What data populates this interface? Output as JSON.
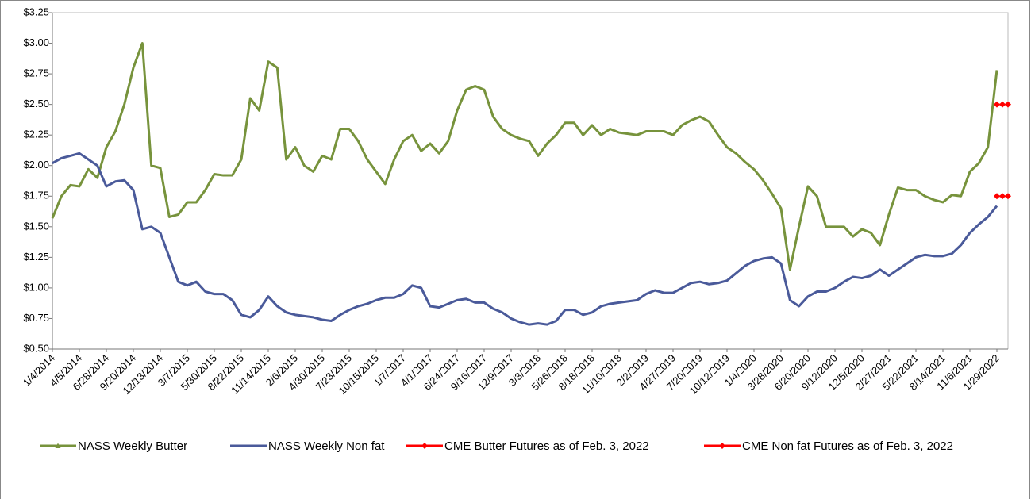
{
  "chart_data": {
    "type": "line",
    "categories": [
      "1/4/2014",
      null,
      null,
      "4/5/2014",
      null,
      null,
      "6/28/2014",
      null,
      null,
      "9/20/2014",
      null,
      null,
      "12/13/2014",
      null,
      null,
      "3/7/2015",
      null,
      null,
      "5/30/2015",
      null,
      null,
      "8/22/2015",
      null,
      null,
      "11/14/2015",
      null,
      null,
      "2/6/2015",
      null,
      null,
      "4/30/2015",
      null,
      null,
      "7/23/2015",
      null,
      null,
      "10/15/2015",
      null,
      null,
      "1/7/2017",
      null,
      null,
      "4/1/2017",
      null,
      null,
      "6/24/2017",
      null,
      null,
      "9/16/2017",
      null,
      null,
      "12/9/2017",
      null,
      null,
      "3/3/2018",
      null,
      null,
      "5/26/2018",
      null,
      null,
      "8/18/2018",
      null,
      null,
      "11/10/2018",
      null,
      null,
      "2/2/2019",
      null,
      null,
      "4/27/2019",
      null,
      null,
      "7/20/2019",
      null,
      null,
      "10/12/2019",
      null,
      null,
      "1/4/2020",
      null,
      null,
      "3/28/2020",
      null,
      null,
      "6/20/2020",
      null,
      null,
      "9/12/2020",
      null,
      null,
      "12/5/2020",
      null,
      null,
      "2/27/2021",
      null,
      null,
      "5/22/2021",
      null,
      null,
      "8/14/2021",
      null,
      null,
      "11/6/2021",
      null,
      null,
      "1/29/2022"
    ],
    "series": [
      {
        "name": "NASS Weekly Butter",
        "color": "#77933c",
        "marker": "triangle",
        "values": [
          1.57,
          1.75,
          1.84,
          1.83,
          1.97,
          1.9,
          2.15,
          2.28,
          2.5,
          2.8,
          3.0,
          2.0,
          1.98,
          1.58,
          1.6,
          1.7,
          1.7,
          1.8,
          1.93,
          1.92,
          1.92,
          2.05,
          2.55,
          2.45,
          2.85,
          2.8,
          2.05,
          2.15,
          2.0,
          1.95,
          2.08,
          2.05,
          2.3,
          2.3,
          2.2,
          2.05,
          1.95,
          1.85,
          2.05,
          2.2,
          2.25,
          2.12,
          2.18,
          2.1,
          2.2,
          2.45,
          2.62,
          2.65,
          2.62,
          2.4,
          2.3,
          2.25,
          2.22,
          2.2,
          2.08,
          2.18,
          2.25,
          2.35,
          2.35,
          2.25,
          2.33,
          2.25,
          2.3,
          2.27,
          2.26,
          2.25,
          2.28,
          2.28,
          2.28,
          2.25,
          2.33,
          2.37,
          2.4,
          2.36,
          2.25,
          2.15,
          2.1,
          2.03,
          1.97,
          1.88,
          1.77,
          1.65,
          1.15,
          1.5,
          1.83,
          1.75,
          1.5,
          1.5,
          1.5,
          1.42,
          1.48,
          1.45,
          1.35,
          1.6,
          1.82,
          1.8,
          1.8,
          1.75,
          1.72,
          1.7,
          1.76,
          1.75,
          1.95,
          2.02,
          2.15,
          2.78
        ]
      },
      {
        "name": "NASS Weekly Non fat",
        "color": "#4a5a9a",
        "marker": "none",
        "values": [
          2.02,
          2.06,
          2.08,
          2.1,
          2.05,
          2.0,
          1.83,
          1.87,
          1.88,
          1.8,
          1.48,
          1.5,
          1.45,
          1.25,
          1.05,
          1.02,
          1.05,
          0.97,
          0.95,
          0.95,
          0.9,
          0.78,
          0.76,
          0.82,
          0.93,
          0.85,
          0.8,
          0.78,
          0.77,
          0.76,
          0.74,
          0.73,
          0.78,
          0.82,
          0.85,
          0.87,
          0.9,
          0.92,
          0.92,
          0.95,
          1.02,
          1.0,
          0.85,
          0.84,
          0.87,
          0.9,
          0.91,
          0.88,
          0.88,
          0.83,
          0.8,
          0.75,
          0.72,
          0.7,
          0.71,
          0.7,
          0.73,
          0.82,
          0.82,
          0.78,
          0.8,
          0.85,
          0.87,
          0.88,
          0.89,
          0.9,
          0.95,
          0.98,
          0.96,
          0.96,
          1.0,
          1.04,
          1.05,
          1.03,
          1.04,
          1.06,
          1.12,
          1.18,
          1.22,
          1.24,
          1.25,
          1.2,
          0.9,
          0.85,
          0.93,
          0.97,
          0.97,
          1.0,
          1.05,
          1.09,
          1.08,
          1.1,
          1.15,
          1.1,
          1.15,
          1.2,
          1.25,
          1.27,
          1.26,
          1.26,
          1.28,
          1.35,
          1.45,
          1.52,
          1.58,
          1.67
        ]
      },
      {
        "name": "CME Butter Futures as of Feb. 3, 2022",
        "color": "#ff0000",
        "marker": "diamond",
        "values": [
          null,
          null,
          null,
          null,
          null,
          null,
          null,
          null,
          null,
          null,
          null,
          null,
          null,
          null,
          null,
          null,
          null,
          null,
          null,
          null,
          null,
          null,
          null,
          null,
          null,
          null,
          null,
          null,
          null,
          null,
          null,
          null,
          null,
          null,
          null,
          null,
          null,
          null,
          null,
          null,
          null,
          null,
          null,
          null,
          null,
          null,
          null,
          null,
          null,
          null,
          null,
          null,
          null,
          null,
          null,
          null,
          null,
          null,
          null,
          null,
          null,
          null,
          null,
          null,
          null,
          null,
          null,
          null,
          null,
          null,
          null,
          null,
          null,
          null,
          null,
          null,
          null,
          null,
          null,
          null,
          null,
          null,
          null,
          null,
          null,
          null,
          null,
          null,
          null,
          null,
          null,
          null,
          null,
          null,
          null,
          null,
          null,
          null,
          null,
          null,
          null,
          null,
          null,
          null,
          null,
          2.5
        ]
      },
      {
        "name": "CME Non fat  Futures as of Feb. 3, 2022",
        "color": "#ff0000",
        "marker": "diamond",
        "values": [
          null,
          null,
          null,
          null,
          null,
          null,
          null,
          null,
          null,
          null,
          null,
          null,
          null,
          null,
          null,
          null,
          null,
          null,
          null,
          null,
          null,
          null,
          null,
          null,
          null,
          null,
          null,
          null,
          null,
          null,
          null,
          null,
          null,
          null,
          null,
          null,
          null,
          null,
          null,
          null,
          null,
          null,
          null,
          null,
          null,
          null,
          null,
          null,
          null,
          null,
          null,
          null,
          null,
          null,
          null,
          null,
          null,
          null,
          null,
          null,
          null,
          null,
          null,
          null,
          null,
          null,
          null,
          null,
          null,
          null,
          null,
          null,
          null,
          null,
          null,
          null,
          null,
          null,
          null,
          null,
          null,
          null,
          null,
          null,
          null,
          null,
          null,
          null,
          null,
          null,
          null,
          null,
          null,
          null,
          null,
          null,
          null,
          null,
          null,
          null,
          null,
          null,
          null,
          null,
          null,
          1.75
        ]
      }
    ],
    "ylim": [
      0.5,
      3.25
    ],
    "yticks": [
      {
        "value": 0.5,
        "label": "$0.50"
      },
      {
        "value": 0.75,
        "label": "$0.75"
      },
      {
        "value": 1,
        "label": "$1.00"
      },
      {
        "value": 1.25,
        "label": "$1.25"
      },
      {
        "value": 1.5,
        "label": "$1.50"
      },
      {
        "value": 1.75,
        "label": "$1.75"
      },
      {
        "value": 2,
        "label": "$2.00"
      },
      {
        "value": 2.25,
        "label": "$2.25"
      },
      {
        "value": 2.5,
        "label": "$2.50"
      },
      {
        "value": 2.75,
        "label": "$2.75"
      },
      {
        "value": 3,
        "label": "$3.00"
      },
      {
        "value": 3.25,
        "label": "$3.25"
      }
    ],
    "grid": false,
    "legend": "bottom"
  }
}
